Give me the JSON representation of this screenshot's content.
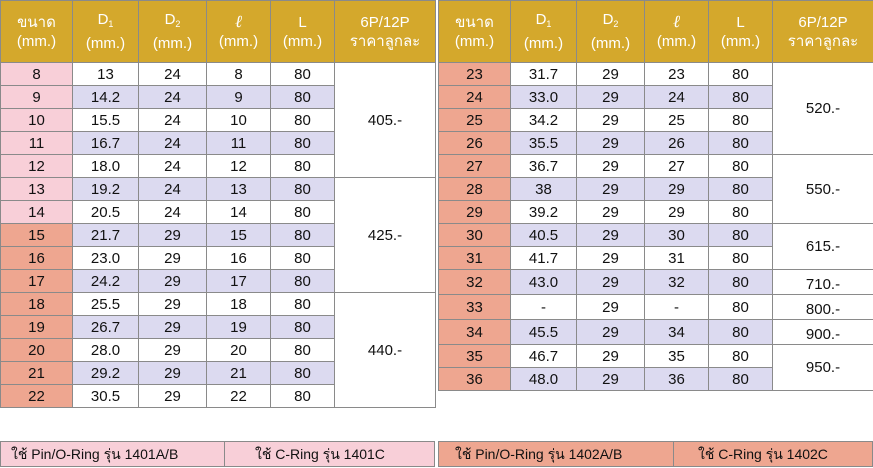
{
  "headers": {
    "size": "ขนาด",
    "size_unit": "(mm.)",
    "d1": "D",
    "d1_sub": "1",
    "d1_unit": "(mm.)",
    "d2": "D",
    "d2_sub": "2",
    "d2_unit": "(mm.)",
    "ell": "ℓ",
    "ell_unit": "(mm.)",
    "len": "L",
    "len_unit": "(mm.)",
    "price": "6P/12P",
    "price_sub": "ราคาลูกละ"
  },
  "left_rows": [
    {
      "size": "8",
      "d1": "13",
      "d2": "24",
      "ell": "8",
      "len": "80"
    },
    {
      "size": "9",
      "d1": "14.2",
      "d2": "24",
      "ell": "9",
      "len": "80"
    },
    {
      "size": "10",
      "d1": "15.5",
      "d2": "24",
      "ell": "10",
      "len": "80"
    },
    {
      "size": "11",
      "d1": "16.7",
      "d2": "24",
      "ell": "11",
      "len": "80"
    },
    {
      "size": "12",
      "d1": "18.0",
      "d2": "24",
      "ell": "12",
      "len": "80"
    },
    {
      "size": "13",
      "d1": "19.2",
      "d2": "24",
      "ell": "13",
      "len": "80"
    },
    {
      "size": "14",
      "d1": "20.5",
      "d2": "24",
      "ell": "14",
      "len": "80"
    },
    {
      "size": "15",
      "d1": "21.7",
      "d2": "29",
      "ell": "15",
      "len": "80"
    },
    {
      "size": "16",
      "d1": "23.0",
      "d2": "29",
      "ell": "16",
      "len": "80"
    },
    {
      "size": "17",
      "d1": "24.2",
      "d2": "29",
      "ell": "17",
      "len": "80"
    },
    {
      "size": "18",
      "d1": "25.5",
      "d2": "29",
      "ell": "18",
      "len": "80"
    },
    {
      "size": "19",
      "d1": "26.7",
      "d2": "29",
      "ell": "19",
      "len": "80"
    },
    {
      "size": "20",
      "d1": "28.0",
      "d2": "29",
      "ell": "20",
      "len": "80"
    },
    {
      "size": "21",
      "d1": "29.2",
      "d2": "29",
      "ell": "21",
      "len": "80"
    },
    {
      "size": "22",
      "d1": "30.5",
      "d2": "29",
      "ell": "22",
      "len": "80"
    }
  ],
  "left_prices": [
    "405.-",
    "425.-",
    "440.-"
  ],
  "right_rows": [
    {
      "size": "23",
      "d1": "31.7",
      "d2": "29",
      "ell": "23",
      "len": "80"
    },
    {
      "size": "24",
      "d1": "33.0",
      "d2": "29",
      "ell": "24",
      "len": "80"
    },
    {
      "size": "25",
      "d1": "34.2",
      "d2": "29",
      "ell": "25",
      "len": "80"
    },
    {
      "size": "26",
      "d1": "35.5",
      "d2": "29",
      "ell": "26",
      "len": "80"
    },
    {
      "size": "27",
      "d1": "36.7",
      "d2": "29",
      "ell": "27",
      "len": "80"
    },
    {
      "size": "28",
      "d1": "38",
      "d2": "29",
      "ell": "29",
      "len": "80"
    },
    {
      "size": "29",
      "d1": "39.2",
      "d2": "29",
      "ell": "29",
      "len": "80"
    },
    {
      "size": "30",
      "d1": "40.5",
      "d2": "29",
      "ell": "30",
      "len": "80"
    },
    {
      "size": "31",
      "d1": "41.7",
      "d2": "29",
      "ell": "31",
      "len": "80"
    },
    {
      "size": "32",
      "d1": "43.0",
      "d2": "29",
      "ell": "32",
      "len": "80"
    },
    {
      "size": "33",
      "d1": "-",
      "d2": "29",
      "ell": "-",
      "len": "80"
    },
    {
      "size": "34",
      "d1": "45.5",
      "d2": "29",
      "ell": "34",
      "len": "80"
    },
    {
      "size": "35",
      "d1": "46.7",
      "d2": "29",
      "ell": "35",
      "len": "80"
    },
    {
      "size": "36",
      "d1": "48.0",
      "d2": "29",
      "ell": "36",
      "len": "80"
    }
  ],
  "right_prices": [
    "520.-",
    "550.-",
    "615.-",
    "710.-",
    "800.-",
    "900.-",
    "950.-"
  ],
  "footer": {
    "left_pin": "ใช้ Pin/O-Ring รุ่น 1401A/B",
    "left_cring": "ใช้ C-Ring รุ่น 1401C",
    "right_pin": "ใช้ Pin/O-Ring รุ่น 1402A/B",
    "right_cring": "ใช้ C-Ring รุ่น 1402C"
  },
  "colors": {
    "header_bg": "#d4a82c",
    "size_pink": "#f8cfd8",
    "size_salmon": "#eea690",
    "row_alt": "#dcdaf0",
    "footer_pink": "#f8cfd8",
    "footer_salmon": "#eea690"
  }
}
